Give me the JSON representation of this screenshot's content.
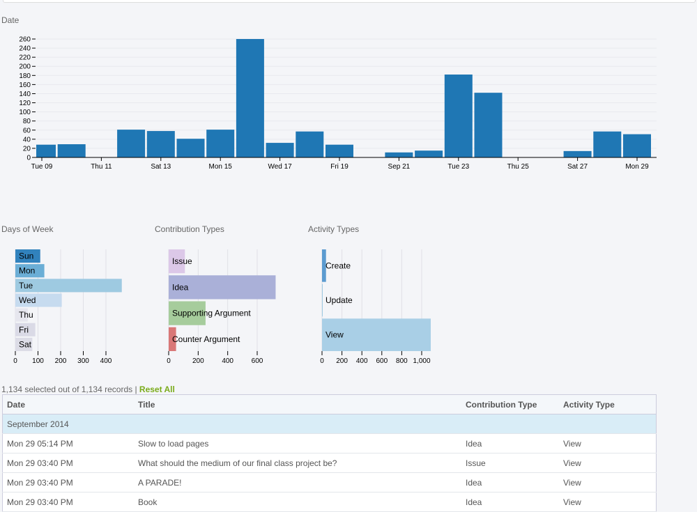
{
  "chart_data": [
    {
      "type": "bar",
      "title": "Date",
      "ylim": [
        0,
        260
      ],
      "yticks": [
        0,
        20,
        40,
        60,
        80,
        100,
        120,
        140,
        160,
        180,
        200,
        220,
        240,
        260
      ],
      "categories": [
        "Tue 09",
        "Wed 10",
        "Thu 11",
        "Fri 12",
        "Sat 13",
        "Sun 14",
        "Mon 15",
        "Tue 16",
        "Wed 17",
        "Thu 18",
        "Fri 19",
        "Sat 20",
        "Sep 21",
        "Mon 22",
        "Tue 23",
        "Wed 24",
        "Thu 25",
        "Fri 26",
        "Sat 27",
        "Sun 28",
        "Mon 29"
      ],
      "values": [
        28,
        29,
        0,
        61,
        58,
        41,
        61,
        260,
        32,
        57,
        28,
        0,
        11,
        15,
        182,
        142,
        0,
        0,
        14,
        57,
        51
      ],
      "xtick_labels": [
        "Tue 09",
        "Thu 11",
        "Sat 13",
        "Mon 15",
        "Wed 17",
        "Fri 19",
        "Sep 21",
        "Tue 23",
        "Thu 25",
        "Sat 27",
        "Mon 29"
      ],
      "color": "#1f77b4"
    },
    {
      "type": "bar",
      "orientation": "horizontal",
      "title": "Days of Week",
      "categories": [
        "Sun",
        "Mon",
        "Tue",
        "Wed",
        "Thu",
        "Fri",
        "Sat"
      ],
      "values": [
        110,
        128,
        470,
        205,
        55,
        88,
        75
      ],
      "xticks": [
        "0",
        "100",
        "200",
        "300",
        "400"
      ],
      "xmax_units": 400,
      "colors": [
        "#3182bd",
        "#6baed6",
        "#9ecae1",
        "#c6dbef",
        "#e6e6ee",
        "#dadae6",
        "#dcdce6"
      ]
    },
    {
      "type": "bar",
      "orientation": "horizontal",
      "title": "Contribution Types",
      "categories": [
        "Issue",
        "Idea",
        "Supporting Argument",
        "Counter Argument"
      ],
      "values": [
        110,
        725,
        250,
        50
      ],
      "xticks": [
        "0",
        "200",
        "400",
        "600"
      ],
      "xmax_units": 600,
      "colors": [
        "#dcc8e8",
        "#aab0d8",
        "#a6cc9c",
        "#d97777"
      ]
    },
    {
      "type": "bar",
      "orientation": "horizontal",
      "title": "Activity Types",
      "categories": [
        "Create",
        "Update",
        "View"
      ],
      "values": [
        40,
        3,
        1091
      ],
      "xticks": [
        "0",
        "200",
        "400",
        "600",
        "800",
        "1,000"
      ],
      "xmax_units": 1000,
      "colors": [
        "#5b9bd0",
        "#9ecae1",
        "#a9cfe6"
      ]
    }
  ],
  "summary": {
    "text": "1,134 selected out of 1,134 records | ",
    "reset": "Reset All"
  },
  "table": {
    "headers": [
      "Date",
      "Title",
      "Contribution Type",
      "Activity Type"
    ],
    "group": "September 2014",
    "rows": [
      [
        "Mon 29 05:14 PM",
        "Slow to load pages",
        "Idea",
        "View"
      ],
      [
        "Mon 29 03:40 PM",
        "What should the medium of our final class project be?",
        "Issue",
        "View"
      ],
      [
        "Mon 29 03:40 PM",
        "A PARADE!",
        "Idea",
        "View"
      ],
      [
        "Mon 29 03:40 PM",
        "Book",
        "Idea",
        "View"
      ]
    ]
  }
}
